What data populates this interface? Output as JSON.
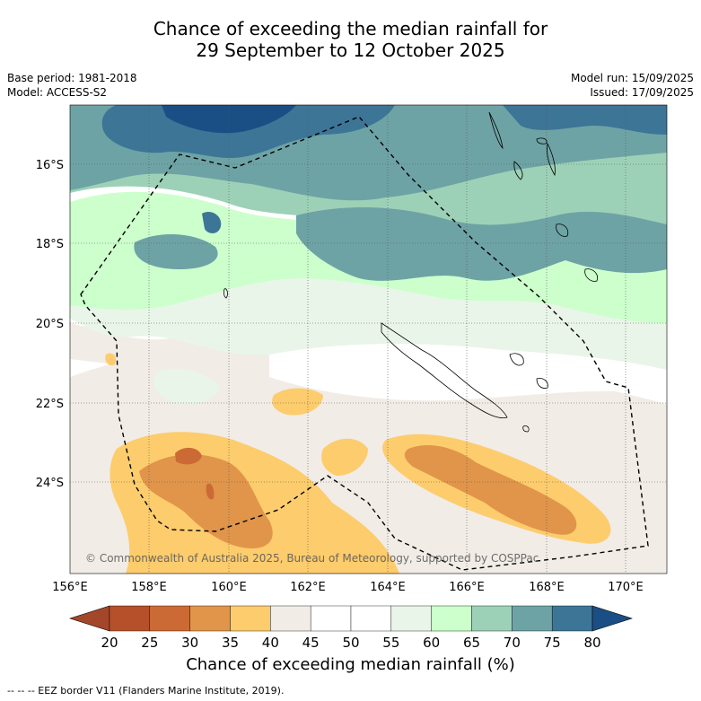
{
  "title": {
    "line1": "Chance of exceeding the median rainfall for",
    "line2": "29 September to 12 October 2025"
  },
  "meta_left": {
    "base_period": "Base period: 1981-2018",
    "model": "Model: ACCESS-S2"
  },
  "meta_right": {
    "model_run": "Model run: 15/09/2025",
    "issued": "Issued: 17/09/2025"
  },
  "map": {
    "lon_labels": [
      "156°E",
      "158°E",
      "160°E",
      "162°E",
      "164°E",
      "166°E",
      "168°E",
      "170°E"
    ],
    "lat_labels": [
      "16°S",
      "18°S",
      "20°S",
      "22°S",
      "24°S"
    ],
    "copyright": "© Commonwealth of Australia 2025, Bureau of Meteorology, supported by COSPPac"
  },
  "colorbar": {
    "ticks": [
      "20",
      "25",
      "30",
      "35",
      "40",
      "45",
      "50",
      "55",
      "60",
      "65",
      "70",
      "75",
      "80"
    ],
    "colors": [
      "#a4462a",
      "#b5502a",
      "#cc6a35",
      "#e0954a",
      "#fdcc6d",
      "#f1ece6",
      "#ffffff",
      "#ffffff",
      "#e9f5e9",
      "#ccffcc",
      "#9dd1b7",
      "#6ea3a5",
      "#3d7597",
      "#1a4f85"
    ],
    "label": "Chance of exceeding median rainfall (%)"
  },
  "footnote": "--  --  -- EEZ border V11 (Flanders Marine Institute, 2019)."
}
